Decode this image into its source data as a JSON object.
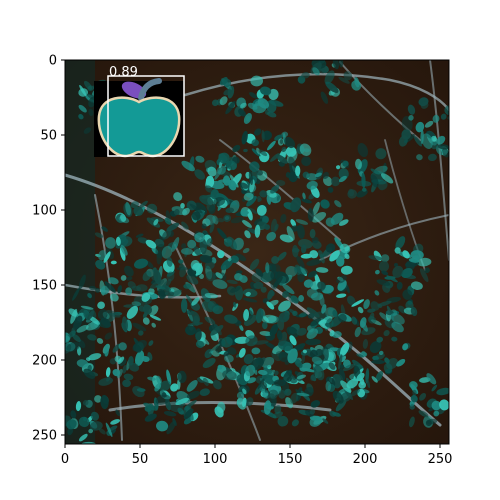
{
  "detection": {
    "score_label": "0.89"
  },
  "axes": {
    "x_ticks": [
      "0",
      "50",
      "100",
      "150",
      "200",
      "250"
    ],
    "y_ticks": [
      "0",
      "50",
      "100",
      "150",
      "200",
      "250"
    ],
    "x_tick_values": [
      0,
      50,
      100,
      150,
      200,
      250
    ],
    "y_tick_values": [
      0,
      50,
      100,
      150,
      200,
      250
    ],
    "x_range": [
      0,
      256
    ],
    "y_range": [
      0,
      256
    ]
  },
  "colors": {
    "image_background": "#2a190e",
    "foliage_dark": "#0b3a36",
    "foliage_teal": "#1f8c84",
    "foliage_light": "#37c4b6",
    "branch": "#9fb6bf",
    "box_outline": "#ffffff",
    "apple_fill": "#139a96",
    "apple_outline": "#e9d7b0",
    "leaf_purple": "#7a4fbf",
    "stem_slate": "#5d7e95"
  },
  "icons": {
    "detected_object": "apple-icon"
  }
}
